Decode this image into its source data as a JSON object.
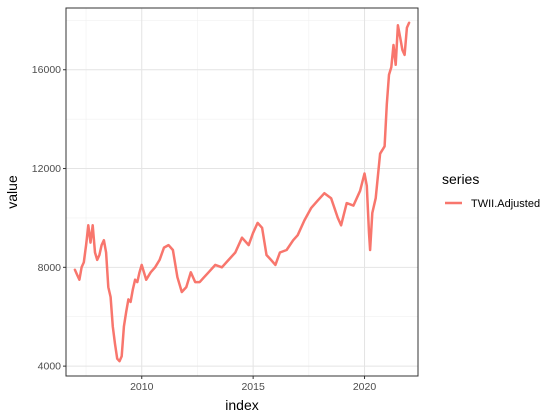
{
  "chart_data": {
    "type": "line",
    "xlabel": "index",
    "ylabel": "value",
    "xlim": [
      2006.6,
      2022.4
    ],
    "ylim": [
      3600,
      18500
    ],
    "x_ticks": [
      2010,
      2015,
      2020
    ],
    "x_tick_labels": [
      "2010",
      "2015",
      "2020"
    ],
    "y_ticks": [
      4000,
      8000,
      12000,
      16000
    ],
    "y_tick_labels": [
      "4000",
      "8000",
      "12000",
      "16000"
    ],
    "grid": true,
    "legend": {
      "title": "series",
      "position": "right"
    },
    "series": [
      {
        "name": "TWII.Adjusted",
        "color": "#F8766D",
        "x": [
          2007.0,
          2007.1,
          2007.2,
          2007.3,
          2007.4,
          2007.5,
          2007.6,
          2007.7,
          2007.8,
          2007.9,
          2008.0,
          2008.1,
          2008.2,
          2008.3,
          2008.4,
          2008.5,
          2008.6,
          2008.7,
          2008.8,
          2008.9,
          2009.0,
          2009.1,
          2009.2,
          2009.3,
          2009.4,
          2009.5,
          2009.6,
          2009.7,
          2009.8,
          2009.9,
          2010.0,
          2010.2,
          2010.4,
          2010.6,
          2010.8,
          2011.0,
          2011.2,
          2011.4,
          2011.6,
          2011.8,
          2012.0,
          2012.2,
          2012.4,
          2012.6,
          2012.8,
          2013.0,
          2013.3,
          2013.6,
          2013.9,
          2014.2,
          2014.5,
          2014.8,
          2015.0,
          2015.2,
          2015.4,
          2015.6,
          2015.8,
          2016.0,
          2016.2,
          2016.5,
          2016.8,
          2017.0,
          2017.3,
          2017.6,
          2017.9,
          2018.2,
          2018.5,
          2018.8,
          2018.95,
          2019.2,
          2019.5,
          2019.8,
          2020.0,
          2020.1,
          2020.2,
          2020.25,
          2020.35,
          2020.5,
          2020.7,
          2020.9,
          2021.0,
          2021.1,
          2021.2,
          2021.3,
          2021.4,
          2021.5,
          2021.6,
          2021.7,
          2021.8,
          2021.9,
          2022.0
        ],
        "values": [
          7900,
          7700,
          7500,
          8000,
          8200,
          8900,
          9700,
          9000,
          9700,
          8600,
          8300,
          8500,
          8900,
          9100,
          8600,
          7200,
          6800,
          5600,
          4900,
          4300,
          4200,
          4400,
          5600,
          6200,
          6700,
          6600,
          7100,
          7500,
          7400,
          7800,
          8100,
          7500,
          7800,
          8000,
          8300,
          8800,
          8900,
          8700,
          7600,
          7000,
          7200,
          7800,
          7400,
          7400,
          7600,
          7800,
          8100,
          8000,
          8300,
          8600,
          9200,
          8900,
          9400,
          9800,
          9600,
          8500,
          8300,
          8100,
          8600,
          8700,
          9100,
          9300,
          9900,
          10400,
          10700,
          11000,
          10800,
          10000,
          9700,
          10600,
          10500,
          11100,
          11800,
          11300,
          9400,
          8700,
          10200,
          10800,
          12600,
          12900,
          14600,
          15800,
          16100,
          17000,
          16200,
          17800,
          17300,
          16800,
          16600,
          17700,
          17900
        ]
      }
    ]
  }
}
